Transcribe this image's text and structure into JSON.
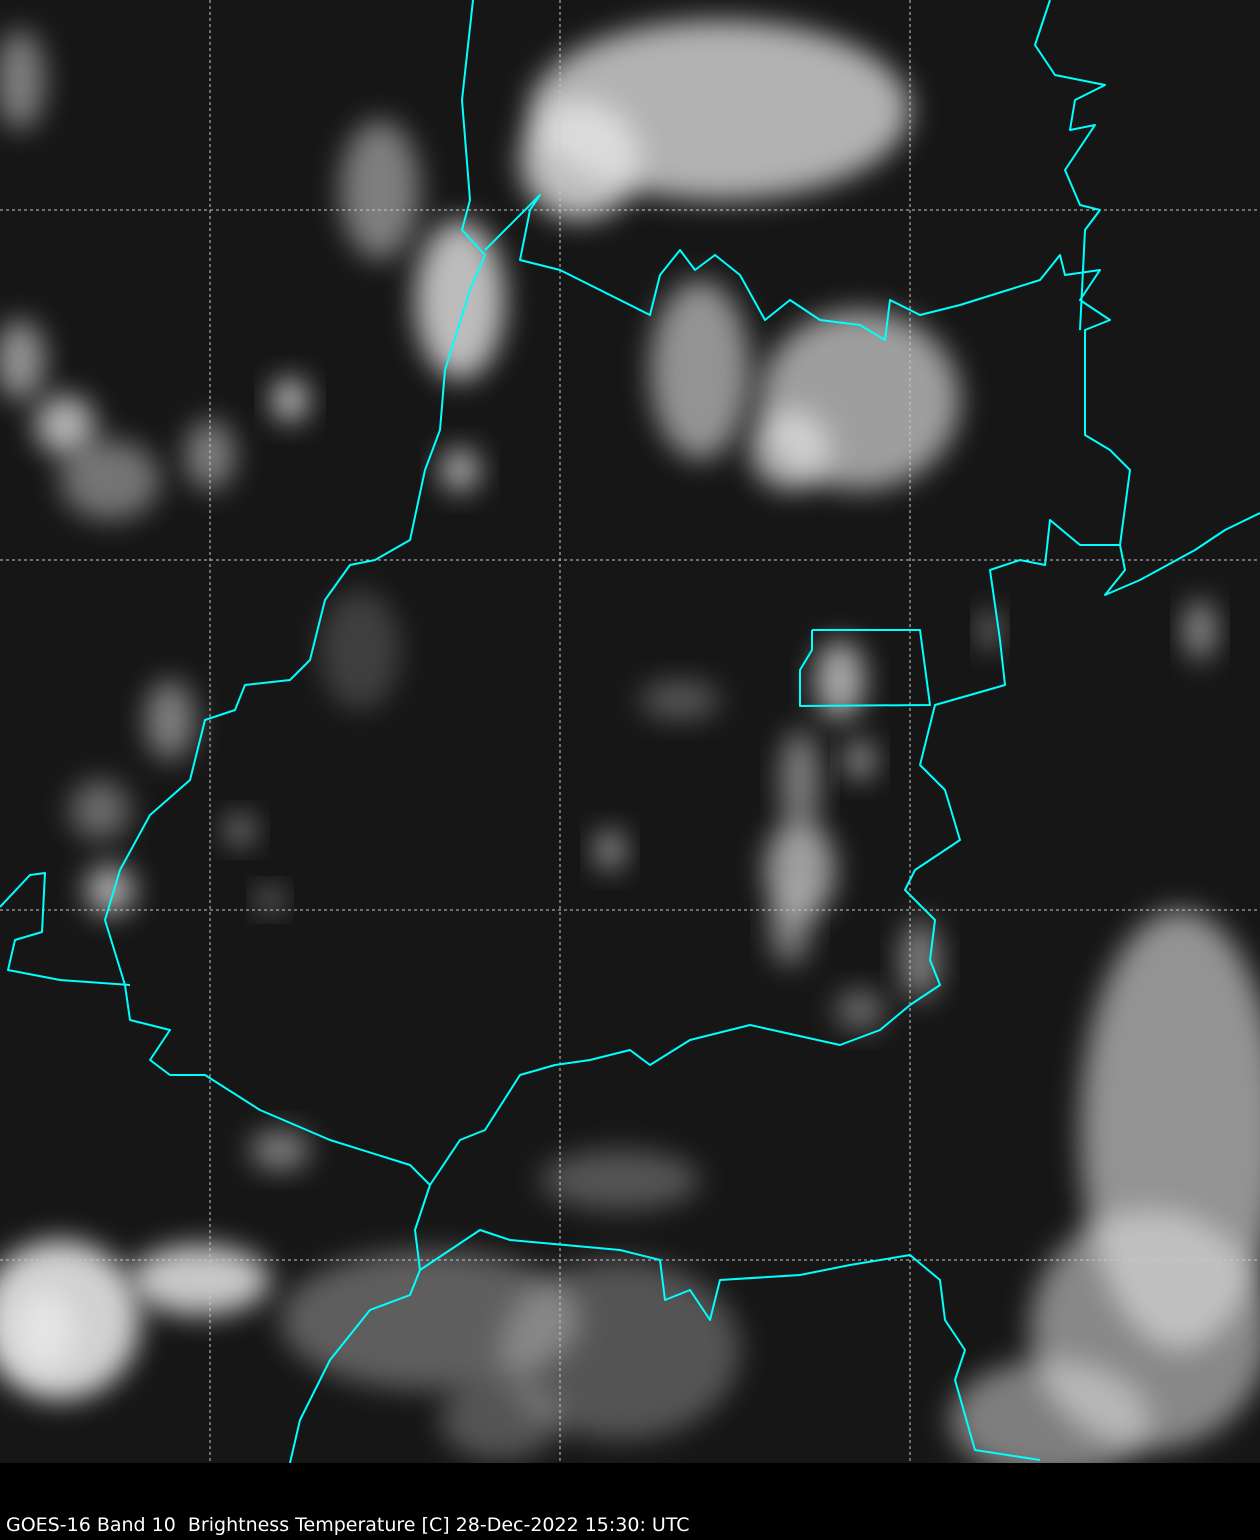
{
  "caption": "GOES-16 Band 10  Brightness Temperature [C] 28-Dec-2022 15:30: UTC",
  "colors": {
    "background": "#141414",
    "border": "#00ffff",
    "grid": "#c8c8c8",
    "cloud": "#e6e6e6"
  },
  "grid": true
}
